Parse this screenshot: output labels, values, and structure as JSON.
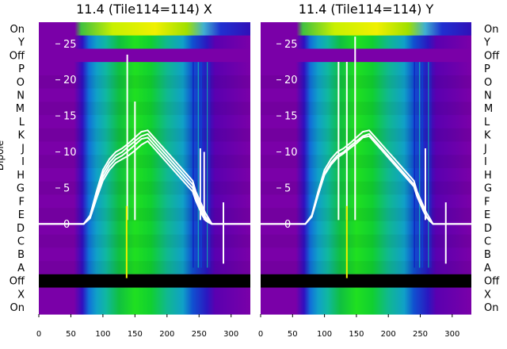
{
  "chart_data": [
    {
      "type": "heatmap",
      "title": "11.4 (Tile114=114) X",
      "ylabel": "Dipole",
      "row_labels": [
        "On",
        "Y",
        "Off",
        "P",
        "O",
        "N",
        "M",
        "L",
        "K",
        "J",
        "I",
        "H",
        "G",
        "F",
        "E",
        "D",
        "C",
        "B",
        "A",
        "Off",
        "X",
        "On"
      ],
      "x_ticks": [
        0,
        50,
        100,
        150,
        200,
        250,
        300
      ],
      "xlim": [
        0,
        330
      ],
      "y_ticks": [
        0,
        5,
        10,
        15,
        20,
        25
      ],
      "ylim": [
        -12.5,
        28
      ],
      "overlay_lines": {
        "x": [
          0,
          70,
          80,
          90,
          100,
          110,
          120,
          130,
          140,
          150,
          160,
          170,
          180,
          190,
          200,
          210,
          220,
          230,
          240,
          245,
          250,
          255,
          260,
          265,
          270,
          280,
          290,
          300,
          330
        ],
        "series": [
          {
            "values": [
              0,
              0,
              1,
              4,
              7,
              8.5,
              9.5,
              10,
              10.8,
              11.5,
              12.2,
              12.5,
              11.5,
              10.5,
              9.5,
              8.5,
              7.5,
              6.5,
              5.5,
              4,
              3,
              2,
              1,
              0.5,
              0,
              0,
              0,
              0,
              0
            ]
          },
          {
            "values": [
              0,
              0,
              1,
              4,
              6.5,
              8,
              9,
              9.5,
              10.2,
              11,
              11.8,
              12,
              11,
              10,
              9,
              8,
              7,
              6,
              5,
              3.5,
              2.5,
              1.5,
              0.8,
              0.3,
              0,
              0,
              0,
              0,
              0
            ]
          },
          {
            "values": [
              0,
              0,
              0.8,
              3.5,
              6,
              7.5,
              8.5,
              9,
              9.5,
              10.2,
              11,
              11.5,
              10.5,
              9.5,
              8.5,
              7.5,
              6.5,
              5.5,
              4.5,
              3.2,
              2.2,
              1.2,
              0.5,
              0.2,
              0,
              0,
              0,
              0,
              0
            ]
          },
          {
            "values": [
              0,
              0,
              1.2,
              4.5,
              7.5,
              9,
              10,
              10.5,
              11.2,
              12,
              12.8,
              13,
              12,
              11,
              10,
              9,
              8,
              7,
              6,
              4.5,
              3.5,
              2.5,
              1.5,
              0.8,
              0,
              0,
              0,
              0,
              0
            ]
          }
        ],
        "spikes": [
          {
            "x": 138,
            "y": 23.5
          },
          {
            "x": 150,
            "y": 17
          },
          {
            "x": 252,
            "y": 10.5
          },
          {
            "x": 258,
            "y": 10
          },
          {
            "x": 288,
            "y": 3
          }
        ]
      }
    },
    {
      "type": "heatmap",
      "title": "11.4 (Tile114=114) Y",
      "ylabel": "",
      "row_labels": [
        "On",
        "Y",
        "Off",
        "P",
        "O",
        "N",
        "M",
        "L",
        "K",
        "J",
        "I",
        "H",
        "G",
        "F",
        "E",
        "D",
        "C",
        "B",
        "A",
        "Off",
        "X",
        "On"
      ],
      "x_ticks": [
        0,
        50,
        100,
        150,
        200,
        250,
        300
      ],
      "xlim": [
        0,
        330
      ],
      "y_ticks": [
        0,
        5,
        10,
        15,
        20,
        25
      ],
      "ylim": [
        -12.5,
        28
      ],
      "overlay_lines": {
        "x": [
          0,
          70,
          80,
          90,
          100,
          110,
          120,
          130,
          140,
          150,
          160,
          170,
          180,
          190,
          200,
          210,
          220,
          230,
          240,
          245,
          250,
          255,
          260,
          265,
          270,
          280,
          290,
          300,
          330
        ],
        "series": [
          {
            "values": [
              0,
              0,
              1,
              4,
              7,
              8.5,
              9.5,
              10,
              10.8,
              11.5,
              12.2,
              12.5,
              11.5,
              10.5,
              9.5,
              8.5,
              7.5,
              6.5,
              5.5,
              4,
              3,
              2,
              1,
              0.5,
              0,
              0,
              0,
              0,
              0
            ]
          },
          {
            "values": [
              0,
              0,
              1,
              4,
              6.8,
              8.2,
              9.2,
              9.8,
              10.5,
              11.2,
              12,
              12.2,
              11.2,
              10.2,
              9.2,
              8.2,
              7.2,
              6.2,
              5.2,
              3.8,
              2.8,
              1.8,
              0.9,
              0.4,
              0,
              0,
              0,
              0,
              0
            ]
          },
          {
            "values": [
              0,
              0,
              1.2,
              4.5,
              7.5,
              9,
              10,
              10.5,
              11.2,
              12,
              12.8,
              13,
              12,
              11,
              10,
              9,
              8,
              7,
              6,
              4.5,
              3.5,
              2.5,
              1.5,
              0.8,
              0,
              0,
              0,
              0,
              0
            ]
          }
        ],
        "spikes": [
          {
            "x": 122,
            "y": 22.5
          },
          {
            "x": 135,
            "y": 22.5
          },
          {
            "x": 148,
            "y": 26
          },
          {
            "x": 258,
            "y": 10.5
          },
          {
            "x": 290,
            "y": 3
          }
        ]
      }
    }
  ]
}
